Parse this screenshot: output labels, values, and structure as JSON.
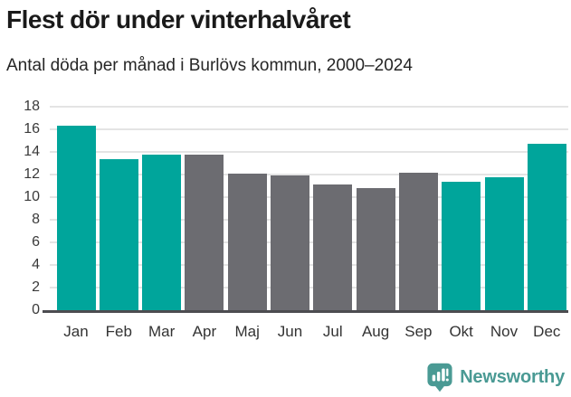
{
  "header": {
    "title": "Flest dör under vinterhalvåret",
    "subtitle": "Antal döda per månad i Burlövs kommun, 2000–2024"
  },
  "chart_data": {
    "type": "bar",
    "title": "Flest dör under vinterhalvåret",
    "subtitle": "Antal döda per månad i Burlövs kommun, 2000–2024",
    "categories": [
      "Jan",
      "Feb",
      "Mar",
      "Apr",
      "Maj",
      "Jun",
      "Jul",
      "Aug",
      "Sep",
      "Okt",
      "Nov",
      "Dec"
    ],
    "values": [
      16.3,
      13.4,
      13.8,
      13.8,
      12.1,
      11.9,
      11.1,
      10.8,
      12.2,
      11.4,
      11.8,
      14.7
    ],
    "highlighted": [
      true,
      true,
      true,
      false,
      false,
      false,
      false,
      false,
      false,
      true,
      true,
      true
    ],
    "xlabel": "",
    "ylabel": "",
    "ylim": [
      0,
      18
    ],
    "ytick_step": 2,
    "grid": "horizontal",
    "legend": "none",
    "colors": {
      "highlight": "#00a59b",
      "default": "#6c6c71"
    }
  },
  "footer": {
    "brand": "Newsworthy",
    "brand_color": "#4a9a94",
    "logo_icon": "bar-chart-speech-bubble-icon"
  }
}
